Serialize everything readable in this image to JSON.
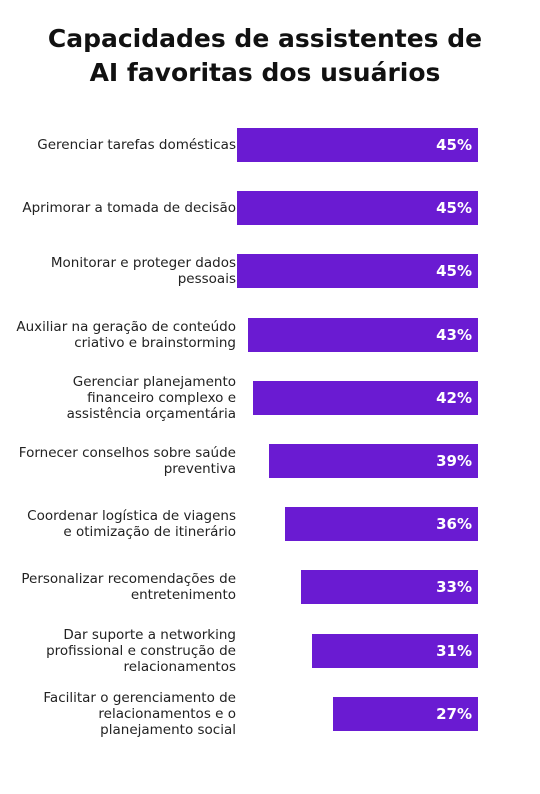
{
  "chart_data": {
    "type": "bar",
    "orientation": "horizontal",
    "title": "Capacidades de assistentes de AI favoritas dos usuários",
    "categories": [
      "Gerenciar tarefas domésticas",
      "Aprimorar a tomada de decisão",
      "Monitorar e proteger dados pessoais",
      "Auxiliar na geração de conteúdo criativo e brainstorming",
      "Gerenciar planejamento financeiro complexo e assistência orçamentária",
      "Fornecer conselhos sobre saúde preventiva",
      "Coordenar logística de viagens e otimização de itinerário",
      "Personalizar recomendações de entretenimento",
      "Dar suporte a networking profissional e construção de relacionamentos",
      "Facilitar o gerenciamento de relacionamentos e o planejamento social"
    ],
    "values": [
      45,
      45,
      45,
      43,
      42,
      39,
      36,
      33,
      31,
      27
    ],
    "value_labels": [
      "45%",
      "45%",
      "45%",
      "43%",
      "42%",
      "39%",
      "36%",
      "33%",
      "31%",
      "27%"
    ],
    "color": "#6a1bd2"
  }
}
